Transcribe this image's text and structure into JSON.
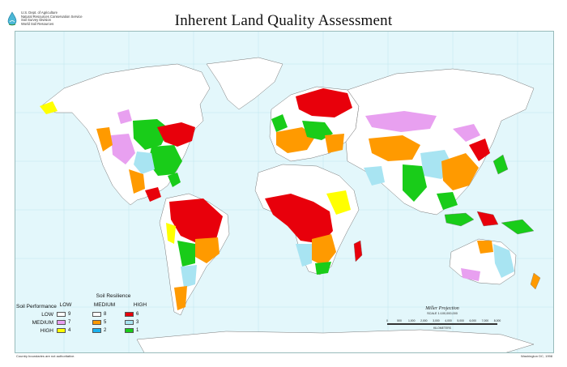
{
  "agency": {
    "lines": [
      "U.S. Dept. of Agriculture",
      "Natural Resources Conservation Service",
      "Soil Survey Division",
      "World Soil Resources"
    ]
  },
  "title": "Inherent Land Quality Assessment",
  "legend": {
    "resilience_title": "Soil Resilience",
    "performance_title": "Soil Performance",
    "columns": [
      "LOW",
      "MEDIUM",
      "HIGH"
    ],
    "rows": [
      {
        "label": "LOW",
        "classes": [
          "9",
          "8",
          "6"
        ],
        "colors": [
          "#ffffff",
          "#ffffff",
          "#e8000b"
        ]
      },
      {
        "label": "MEDIUM",
        "classes": [
          "7",
          "5",
          "3"
        ],
        "colors": [
          "#e8a0f0",
          "#ff9a00",
          "#a8e4f2"
        ]
      },
      {
        "label": "HIGH",
        "classes": [
          "4",
          "2",
          "1"
        ],
        "colors": [
          "#ffff00",
          "#19b2f0",
          "#19cc19"
        ]
      }
    ]
  },
  "projection": "Miller Projection",
  "scale": {
    "text": "SCALE 1:100,000,000",
    "ticks": [
      "0",
      "500",
      "1,000",
      "2,000",
      "3,000",
      "4,000",
      "5,000",
      "6,000",
      "7,000",
      "8,000"
    ],
    "unit": "KILOMETERS"
  },
  "footer": {
    "left": "Country boundaries are not authoritative.",
    "right": "Washington DC, 1998"
  },
  "land_class_colors": {
    "class_1": "#19cc19",
    "class_2": "#19b2f0",
    "class_3": "#a8e4f2",
    "class_4": "#ffff00",
    "class_5": "#ff9a00",
    "class_6": "#e8000b",
    "class_7": "#e8a0f0",
    "class_8": "#ffffff",
    "class_9": "#ffffff",
    "ocean": "#e3f7fb"
  }
}
